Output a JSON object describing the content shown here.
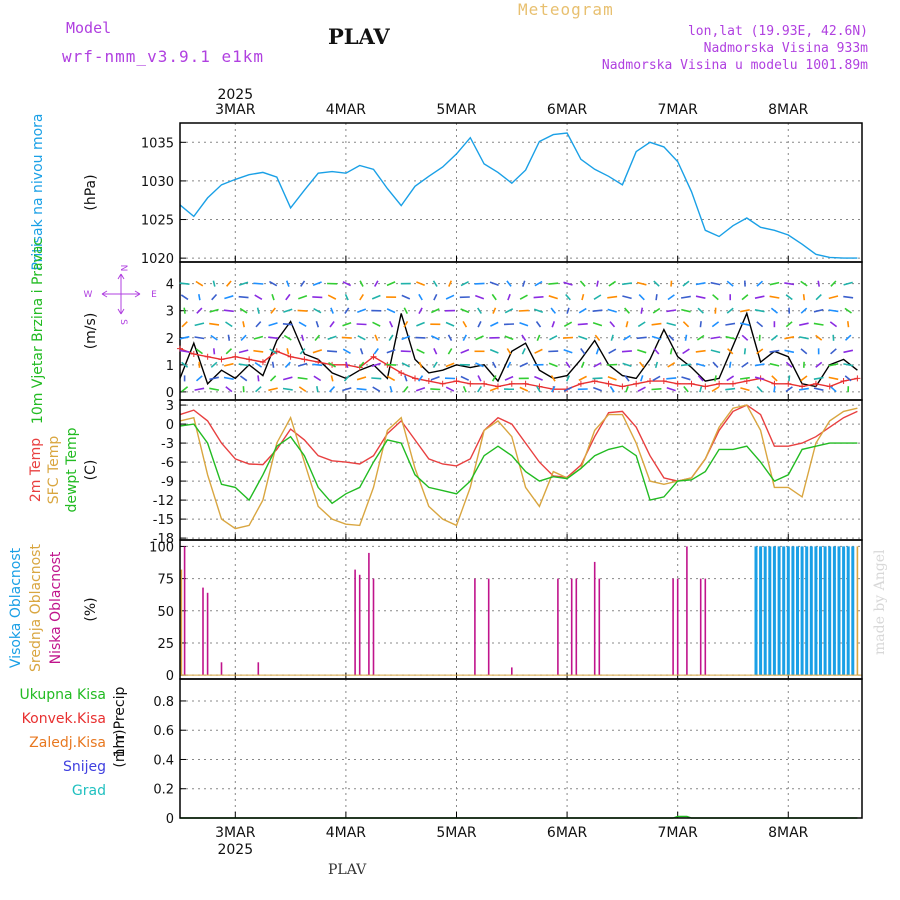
{
  "header": {
    "model_label": "Model",
    "model_name": "wrf-nmm_v3.9.1 e1km",
    "station": "PLAV",
    "product": "Meteogram",
    "lonlat": "lon,lat (19.93E, 42.6N)",
    "elevation": "Nadmorska Visina 933m",
    "model_elevation": "Nadmorska Visina u modelu 1001.89m",
    "footer_station": "PLAV",
    "credit": "made by Angel"
  },
  "time_axis": {
    "year": "2025",
    "day_labels": [
      "3MAR",
      "4MAR",
      "5MAR",
      "6MAR",
      "7MAR",
      "8MAR"
    ],
    "day_positions_hours": [
      12,
      36,
      60,
      84,
      108,
      132
    ],
    "range_hours": [
      0,
      148
    ]
  },
  "colors": {
    "pressure": "#1aa0e6",
    "wind_speed": "#000000",
    "wind_gust": "#e83030",
    "temp_2m": "#e84040",
    "temp_sfc": "#d9a640",
    "temp_dew": "#22bb22",
    "cloud_high": "#1aa0e6",
    "cloud_mid": "#d9a640",
    "cloud_low": "#c0148c",
    "precip_total": "#22bb22",
    "precip_conv": "#e83030",
    "precip_frozen": "#e87820",
    "snow": "#4040e0",
    "graupel": "#20c0c0",
    "vector_label": "#b040e0"
  },
  "chart_data": [
    {
      "type": "line",
      "panel": "pressure",
      "ylabel": "Pritisak na nivou mora",
      "unit": "(hPa)",
      "ylim": [
        1019.5,
        1037.5
      ],
      "yticks": [
        1020,
        1025,
        1030,
        1035
      ],
      "grid": true,
      "series": [
        {
          "color_key": "pressure",
          "x": [
            0,
            3,
            6,
            9,
            12,
            15,
            18,
            21,
            24,
            27,
            30,
            33,
            36,
            39,
            42,
            45,
            48,
            51,
            54,
            57,
            60,
            63,
            66,
            69,
            72,
            75,
            78,
            81,
            84,
            87,
            90,
            93,
            96,
            99,
            102,
            105,
            108,
            111,
            114,
            117,
            120,
            123,
            126,
            129,
            132,
            135,
            138,
            141,
            144,
            147
          ],
          "values": [
            1026.9,
            1025.4,
            1027.8,
            1029.5,
            1030.2,
            1030.8,
            1031.1,
            1030.5,
            1026.5,
            1028.8,
            1031.0,
            1031.2,
            1031.0,
            1032.0,
            1031.5,
            1029.0,
            1026.8,
            1029.3,
            1030.6,
            1031.8,
            1033.5,
            1035.6,
            1032.2,
            1031.1,
            1029.7,
            1031.4,
            1035.1,
            1036.0,
            1036.2,
            1032.8,
            1031.5,
            1030.6,
            1029.5,
            1033.8,
            1035.0,
            1034.4,
            1032.5,
            1028.6,
            1023.6,
            1022.8,
            1024.2,
            1025.2,
            1024.0,
            1023.6,
            1023.0,
            1021.8,
            1020.5,
            1020.1,
            1020.0,
            1020.0
          ]
        }
      ]
    },
    {
      "type": "line",
      "panel": "wind",
      "ylabel": "10m Vjetar Brzina i Pravac",
      "unit": "(m/s)",
      "ylim": [
        -0.3,
        4.8
      ],
      "yticks": [
        0,
        1,
        2,
        3,
        4
      ],
      "grid": true,
      "direction_key": {
        "n": "N",
        "w": "W",
        "e": "E",
        "s": "S"
      },
      "series": [
        {
          "color_key": "wind_speed",
          "x": [
            0,
            3,
            6,
            9,
            12,
            15,
            18,
            21,
            24,
            27,
            30,
            33,
            36,
            39,
            42,
            45,
            48,
            51,
            54,
            57,
            60,
            63,
            66,
            69,
            72,
            75,
            78,
            81,
            84,
            87,
            90,
            93,
            96,
            99,
            102,
            105,
            108,
            111,
            114,
            117,
            120,
            123,
            126,
            129,
            132,
            135,
            138,
            141,
            144,
            147
          ],
          "values": [
            0.5,
            1.8,
            0.3,
            0.8,
            0.5,
            1.0,
            0.6,
            1.9,
            2.6,
            1.4,
            1.2,
            0.7,
            0.5,
            0.8,
            1.0,
            0.5,
            2.9,
            1.2,
            0.7,
            0.8,
            1.0,
            0.9,
            1.0,
            0.4,
            1.5,
            1.8,
            0.8,
            0.5,
            0.6,
            1.2,
            1.9,
            1.0,
            0.6,
            0.5,
            1.2,
            2.3,
            1.3,
            0.9,
            0.4,
            0.5,
            1.7,
            2.9,
            1.1,
            1.5,
            1.3,
            0.3,
            0.2,
            1.0,
            1.2,
            0.8
          ]
        },
        {
          "color_key": "wind_gust",
          "x": [
            0,
            3,
            6,
            9,
            12,
            15,
            18,
            21,
            24,
            27,
            30,
            33,
            36,
            39,
            42,
            45,
            48,
            51,
            54,
            57,
            60,
            63,
            66,
            69,
            72,
            75,
            78,
            81,
            84,
            87,
            90,
            93,
            96,
            99,
            102,
            105,
            108,
            111,
            114,
            117,
            120,
            123,
            126,
            129,
            132,
            135,
            138,
            141,
            144,
            147
          ],
          "values": [
            1.6,
            1.4,
            1.3,
            1.2,
            1.3,
            1.2,
            1.1,
            1.5,
            1.3,
            1.2,
            1.1,
            1.0,
            1.0,
            0.9,
            1.3,
            1.0,
            0.7,
            0.5,
            0.4,
            0.3,
            0.4,
            0.3,
            0.3,
            0.2,
            0.3,
            0.3,
            0.2,
            0.1,
            0.1,
            0.3,
            0.4,
            0.3,
            0.2,
            0.3,
            0.4,
            0.4,
            0.3,
            0.3,
            0.2,
            0.3,
            0.3,
            0.4,
            0.5,
            0.3,
            0.3,
            0.2,
            0.3,
            0.2,
            0.4,
            0.5
          ]
        }
      ]
    },
    {
      "type": "line",
      "panel": "temperature",
      "ylabels": [
        "2m Temp",
        "SFC Temp",
        "dewpt Temp"
      ],
      "unit": "(C)",
      "ylim": [
        -18.3,
        3.8
      ],
      "yticks": [
        3,
        0,
        -3,
        -6,
        -9,
        -12,
        -15,
        -18
      ],
      "grid": true,
      "series": [
        {
          "color_key": "temp_2m",
          "x": [
            0,
            3,
            6,
            9,
            12,
            15,
            18,
            21,
            24,
            27,
            30,
            33,
            36,
            39,
            42,
            45,
            48,
            51,
            54,
            57,
            60,
            63,
            66,
            69,
            72,
            75,
            78,
            81,
            84,
            87,
            90,
            93,
            96,
            99,
            102,
            105,
            108,
            111,
            114,
            117,
            120,
            123,
            126,
            129,
            132,
            135,
            138,
            141,
            144,
            147
          ],
          "values": [
            1.5,
            2.2,
            0.5,
            -3.0,
            -5.5,
            -6.3,
            -6.4,
            -4.0,
            -0.8,
            -2.5,
            -5.0,
            -5.8,
            -6.0,
            -6.3,
            -5.0,
            -1.5,
            0.5,
            -2.5,
            -5.5,
            -6.3,
            -6.6,
            -5.5,
            -1.0,
            1.0,
            0.0,
            -3.0,
            -6.0,
            -8.2,
            -8.4,
            -6.5,
            -2.0,
            1.8,
            2.0,
            -0.5,
            -5.0,
            -8.5,
            -9.0,
            -8.5,
            -5.5,
            -1.0,
            2.0,
            3.0,
            1.5,
            -3.5,
            -3.5,
            -3.0,
            -2.0,
            -0.5,
            1.0,
            2.0
          ]
        },
        {
          "color_key": "temp_sfc",
          "x": [
            0,
            3,
            6,
            9,
            12,
            15,
            18,
            21,
            24,
            27,
            30,
            33,
            36,
            39,
            42,
            45,
            48,
            51,
            54,
            57,
            60,
            63,
            66,
            69,
            72,
            75,
            78,
            81,
            84,
            87,
            90,
            93,
            96,
            99,
            102,
            105,
            108,
            111,
            114,
            117,
            120,
            123,
            126,
            129,
            132,
            135,
            138,
            141,
            144,
            147
          ],
          "values": [
            0.5,
            1.0,
            -8.0,
            -15.0,
            -16.5,
            -16.0,
            -12.0,
            -3.0,
            1.0,
            -6.0,
            -13.0,
            -15.0,
            -15.8,
            -16.0,
            -10.0,
            -1.0,
            1.0,
            -7.0,
            -13.0,
            -15.0,
            -16.0,
            -10.0,
            -1.0,
            0.5,
            -2.0,
            -10.0,
            -13.0,
            -7.5,
            -8.5,
            -7.0,
            -1.0,
            1.5,
            1.5,
            -3.0,
            -9.0,
            -9.5,
            -9.0,
            -8.5,
            -5.5,
            -0.5,
            2.5,
            3.0,
            -1.0,
            -10.0,
            -10.0,
            -11.5,
            -3.0,
            0.5,
            2.0,
            2.5
          ]
        },
        {
          "color_key": "temp_dew",
          "x": [
            0,
            3,
            6,
            9,
            12,
            15,
            18,
            21,
            24,
            27,
            30,
            33,
            36,
            39,
            42,
            45,
            48,
            51,
            54,
            57,
            60,
            63,
            66,
            69,
            72,
            75,
            78,
            81,
            84,
            87,
            90,
            93,
            96,
            99,
            102,
            105,
            108,
            111,
            114,
            117,
            120,
            123,
            126,
            129,
            132,
            135,
            138,
            141,
            144,
            147
          ],
          "values": [
            -0.3,
            0.0,
            -3.0,
            -9.5,
            -10.0,
            -12.0,
            -8.0,
            -3.5,
            -2.0,
            -5.0,
            -10.0,
            -12.5,
            -11.0,
            -10.0,
            -6.0,
            -2.5,
            -3.0,
            -8.0,
            -10.0,
            -10.5,
            -11.0,
            -9.0,
            -5.0,
            -3.5,
            -5.0,
            -7.5,
            -9.0,
            -8.3,
            -8.6,
            -7.0,
            -5.0,
            -4.0,
            -3.5,
            -5.0,
            -12.0,
            -11.5,
            -9.0,
            -8.8,
            -7.5,
            -4.0,
            -4.0,
            -3.5,
            -6.0,
            -9.0,
            -8.0,
            -4.0,
            -3.5,
            -3.0,
            -3.0,
            -3.0
          ]
        }
      ]
    },
    {
      "type": "bar",
      "panel": "clouds",
      "ylabels": [
        "Visoka Oblacnost",
        "Srednja Oblacnost",
        "Niska Oblacnost"
      ],
      "unit": "(%)",
      "ylim": [
        -3,
        105
      ],
      "yticks": [
        0,
        25,
        50,
        75,
        100
      ],
      "grid": true,
      "series": [
        {
          "name": "Niska Oblacnost",
          "color_key": "cloud_low",
          "x": [
            1,
            5,
            6,
            9,
            17,
            38,
            39,
            41,
            42,
            64,
            67,
            72,
            82,
            85,
            86,
            90,
            91,
            107,
            108,
            110,
            113,
            114
          ],
          "values": [
            100,
            68,
            64,
            10,
            10,
            82,
            78,
            95,
            75,
            75,
            75,
            6,
            75,
            75,
            75,
            88,
            75,
            75,
            75,
            100,
            75,
            75
          ]
        },
        {
          "name": "Srednja Oblacnost",
          "color_key": "cloud_mid",
          "x": [
            0.3,
            126,
            127,
            128,
            129,
            130,
            131,
            132,
            133,
            134,
            135,
            136,
            137,
            138,
            139,
            140,
            141,
            142,
            143,
            144,
            145,
            146,
            147
          ],
          "values": [
            82,
            100,
            95,
            100,
            90,
            100,
            95,
            100,
            95,
            75,
            100,
            75,
            95,
            100,
            75,
            100,
            95,
            100,
            100,
            100,
            95,
            100,
            100
          ]
        },
        {
          "name": "Visoka Oblacnost",
          "color_key": "cloud_high",
          "x": [
            125,
            126,
            127,
            128,
            129,
            130,
            131,
            132,
            133,
            134,
            135,
            136,
            137,
            138,
            139,
            140,
            141,
            142,
            143,
            144,
            145,
            146
          ],
          "values": [
            100,
            100,
            100,
            100,
            100,
            100,
            100,
            100,
            100,
            100,
            100,
            100,
            100,
            100,
            100,
            100,
            100,
            100,
            100,
            100,
            100,
            100
          ]
        }
      ]
    },
    {
      "type": "line",
      "panel": "precip",
      "ylabel": "1hr Precip",
      "unit": "(mm)",
      "ylim": [
        0,
        0.95
      ],
      "yticks": [
        0,
        0.2,
        0.4,
        0.6,
        0.8
      ],
      "grid": true,
      "legend": [
        "Ukupna Kisa",
        "Konvek.Kisa",
        "Zaledj.Kisa",
        "Snijeg",
        "Grad"
      ],
      "series": [
        {
          "name": "Ukupna Kisa",
          "color_key": "precip_total",
          "x": [
            0,
            107,
            108,
            109,
            110,
            111,
            147
          ],
          "values": [
            0,
            0,
            0.01,
            0.01,
            0.01,
            0,
            0
          ]
        }
      ]
    }
  ]
}
